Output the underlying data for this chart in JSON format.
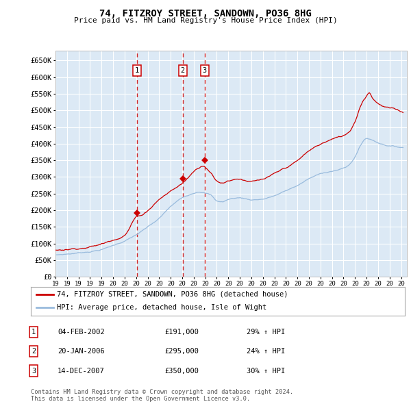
{
  "title": "74, FITZROY STREET, SANDOWN, PO36 8HG",
  "subtitle": "Price paid vs. HM Land Registry's House Price Index (HPI)",
  "plot_bg_color": "#dce9f5",
  "ylabel": "",
  "xlabel": "",
  "ylim": [
    0,
    680000
  ],
  "yticks": [
    0,
    50000,
    100000,
    150000,
    200000,
    250000,
    300000,
    350000,
    400000,
    450000,
    500000,
    550000,
    600000,
    650000
  ],
  "legend_label_red": "74, FITZROY STREET, SANDOWN, PO36 8HG (detached house)",
  "legend_label_blue": "HPI: Average price, detached house, Isle of Wight",
  "red_color": "#cc0000",
  "blue_color": "#99bbdd",
  "purchases": [
    {
      "date": 2002.08,
      "price": 191000,
      "label": "1"
    },
    {
      "date": 2006.05,
      "price": 295000,
      "label": "2"
    },
    {
      "date": 2007.95,
      "price": 350000,
      "label": "3"
    }
  ],
  "vline_dates": [
    2002.08,
    2006.05,
    2007.95
  ],
  "purchase_table": [
    {
      "num": "1",
      "date": "04-FEB-2002",
      "price": "£191,000",
      "hpi": "29% ↑ HPI"
    },
    {
      "num": "2",
      "date": "20-JAN-2006",
      "price": "£295,000",
      "hpi": "24% ↑ HPI"
    },
    {
      "num": "3",
      "date": "14-DEC-2007",
      "price": "£350,000",
      "hpi": "30% ↑ HPI"
    }
  ],
  "footer": "Contains HM Land Registry data © Crown copyright and database right 2024.\nThis data is licensed under the Open Government Licence v3.0.",
  "xmin": 1995.0,
  "xmax": 2025.5
}
